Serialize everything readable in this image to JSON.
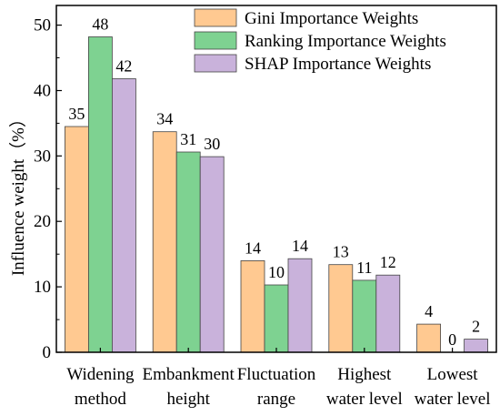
{
  "chart_data": {
    "type": "bar",
    "title": "",
    "xlabel": "",
    "ylabel": "Influence weight（%）",
    "ylim": [
      0,
      53
    ],
    "yticks": [
      0,
      10,
      20,
      30,
      40,
      50
    ],
    "grid": false,
    "legend_position": "top-right",
    "categories": [
      [
        "Widening",
        "method"
      ],
      [
        "Embankment",
        "height"
      ],
      [
        "Fluctuation",
        "range"
      ],
      [
        "Highest",
        "water level"
      ],
      [
        "Lowest",
        "water level"
      ]
    ],
    "series": [
      {
        "name": "Gini Importance Weights",
        "color": "#FFC991",
        "values": [
          34.5,
          33.7,
          14.0,
          13.4,
          4.3
        ],
        "labels": [
          "35",
          "34",
          "14",
          "13",
          "4"
        ]
      },
      {
        "name": "Ranking Importance Weights",
        "color": "#7ED291",
        "values": [
          48.2,
          30.6,
          10.3,
          11.0,
          0.0
        ],
        "labels": [
          "48",
          "31",
          "10",
          "11",
          "0"
        ]
      },
      {
        "name": "SHAP Importance Weights",
        "color": "#C9B2DB",
        "values": [
          41.8,
          29.9,
          14.3,
          11.8,
          2.0
        ],
        "labels": [
          "42",
          "30",
          "14",
          "12",
          "2"
        ]
      }
    ]
  }
}
